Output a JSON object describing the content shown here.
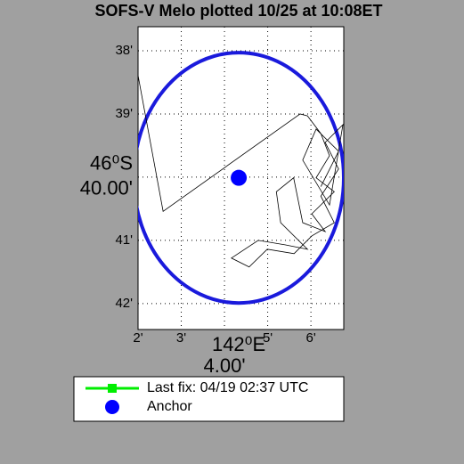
{
  "chart_data": {
    "type": "line",
    "title": "SOFS-V Melo plotted 10/25 at 10:08ET",
    "xlabel": "142⁰E",
    "ylabel": "46⁰S",
    "xlim": [
      2,
      6.76
    ],
    "ylim": [
      42.41,
      37.62
    ],
    "xticks": [
      2,
      3,
      {
        "value": 4,
        "label": "4.00'"
      },
      5,
      6
    ],
    "yticks": [
      38,
      39,
      {
        "value": 40,
        "label": "40.00'"
      },
      41,
      42
    ],
    "xtick_labels": [
      "2'",
      "3'",
      "4.00'",
      "5'",
      "6'"
    ],
    "ytick_labels": [
      "38'",
      "39'",
      "40.00'",
      "41'",
      "42'"
    ],
    "grid": true,
    "track": {
      "color": "#000000",
      "x": [
        2.0,
        2.58,
        5.75,
        5.92,
        6.23,
        6.43,
        6.12,
        6.54,
        6.02,
        6.33,
        5.81,
        5.6,
        5.2,
        5.3,
        5.92,
        5.4,
        4.78,
        4.16,
        4.57,
        4.99,
        5.61,
        6.02,
        6.54,
        6.23,
        6.64,
        6.33,
        6.74,
        6.43,
        5.81,
        6.12,
        6.64,
        6.23
      ],
      "y": [
        38.39,
        40.54,
        39.0,
        39.03,
        39.31,
        39.66,
        40.01,
        40.23,
        40.58,
        40.86,
        40.72,
        40.01,
        40.23,
        40.72,
        41.14,
        41.07,
        41.0,
        41.28,
        41.42,
        41.14,
        41.21,
        40.93,
        40.72,
        40.3,
        39.87,
        39.45,
        39.17,
        40.44,
        39.73,
        39.24,
        39.59,
        40.15
      ]
    },
    "anchor": {
      "x": 4.33,
      "y": 40.01,
      "color": "#0000ff"
    },
    "watch_circle": {
      "radius_x": 2.43,
      "radius_y": 1.98,
      "color": "#1a1adc"
    },
    "legend": [
      {
        "name": "Last fix: 04/19 02:37 UTC",
        "color": "#00ee00"
      },
      {
        "name": "Anchor",
        "color": "#0000ff"
      }
    ]
  }
}
